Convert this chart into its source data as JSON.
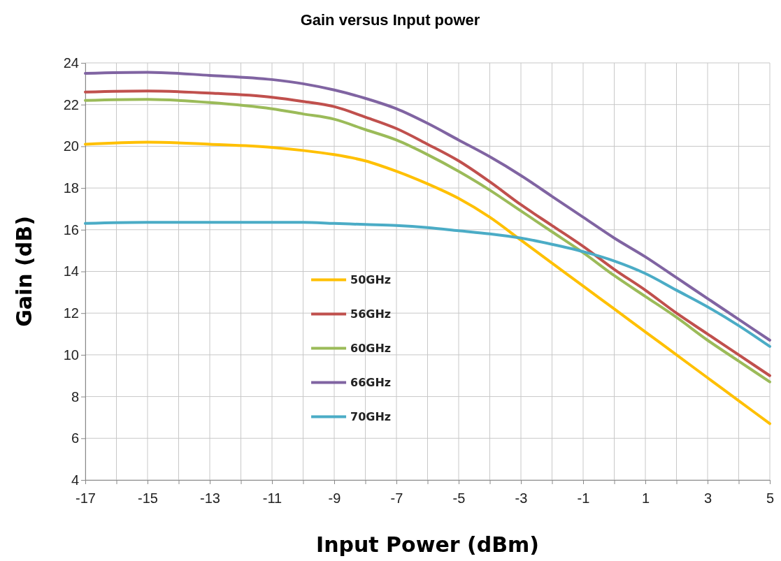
{
  "chart_data": {
    "type": "line",
    "title": "Gain versus Input power",
    "xlabel": "Input Power (dBm)",
    "ylabel": "Gain (dB)",
    "xlim": [
      -17,
      5
    ],
    "xticks": [
      -17,
      {
        "value": -16,
        "label": null
      },
      -15,
      {
        "value": -14,
        "label": null
      },
      -13,
      {
        "value": -12,
        "label": null
      },
      -11,
      {
        "value": -10,
        "label": null
      },
      -9,
      {
        "value": -8,
        "label": null
      },
      -7,
      {
        "value": -6,
        "label": null
      },
      -5,
      {
        "value": -4,
        "label": null
      },
      -3,
      {
        "value": -2,
        "label": null
      },
      -1,
      {
        "value": 0,
        "label": null
      },
      1,
      {
        "value": 2,
        "label": null
      },
      3,
      {
        "value": 4,
        "label": null
      },
      5
    ],
    "ylim": [
      4,
      24
    ],
    "yticks": [
      4,
      6,
      8,
      10,
      12,
      14,
      16,
      18,
      20,
      22,
      24
    ],
    "grid": true,
    "legend": "center",
    "marker": "none",
    "line_style": "solid",
    "x": [
      -17,
      -15,
      -13,
      -11,
      -10,
      -9,
      -8,
      -7,
      -6,
      -5,
      -4,
      -3,
      -2,
      -1,
      0,
      1,
      2,
      3,
      4,
      5
    ],
    "series": [
      {
        "name": "50GHz",
        "color": "#ffc000",
        "values": [
          20.1,
          20.2,
          20.1,
          19.95,
          19.8,
          19.6,
          19.3,
          18.8,
          18.2,
          17.5,
          16.6,
          15.5,
          14.4,
          13.3,
          12.2,
          11.1,
          10.0,
          8.9,
          7.8,
          6.7
        ]
      },
      {
        "name": "56GHz",
        "color": "#c0504d",
        "values": [
          22.6,
          22.65,
          22.55,
          22.35,
          22.15,
          21.9,
          21.4,
          20.85,
          20.1,
          19.3,
          18.3,
          17.2,
          16.2,
          15.2,
          14.1,
          13.1,
          12.0,
          11.0,
          10.0,
          9.0
        ]
      },
      {
        "name": "60GHz",
        "color": "#9bbb59",
        "values": [
          22.2,
          22.25,
          22.1,
          21.8,
          21.55,
          21.3,
          20.8,
          20.3,
          19.6,
          18.8,
          17.9,
          16.9,
          15.9,
          14.9,
          13.8,
          12.8,
          11.8,
          10.7,
          9.7,
          8.7
        ]
      },
      {
        "name": "66GHz",
        "color": "#8064a2",
        "values": [
          23.5,
          23.55,
          23.4,
          23.2,
          23.0,
          22.7,
          22.3,
          21.8,
          21.1,
          20.3,
          19.5,
          18.6,
          17.6,
          16.6,
          15.6,
          14.7,
          13.7,
          12.7,
          11.7,
          10.7
        ]
      },
      {
        "name": "70GHz",
        "color": "#4bacc6",
        "values": [
          16.3,
          16.35,
          16.35,
          16.35,
          16.35,
          16.3,
          16.25,
          16.2,
          16.1,
          15.95,
          15.8,
          15.6,
          15.3,
          14.95,
          14.5,
          13.9,
          13.1,
          12.3,
          11.4,
          10.4
        ]
      }
    ]
  }
}
